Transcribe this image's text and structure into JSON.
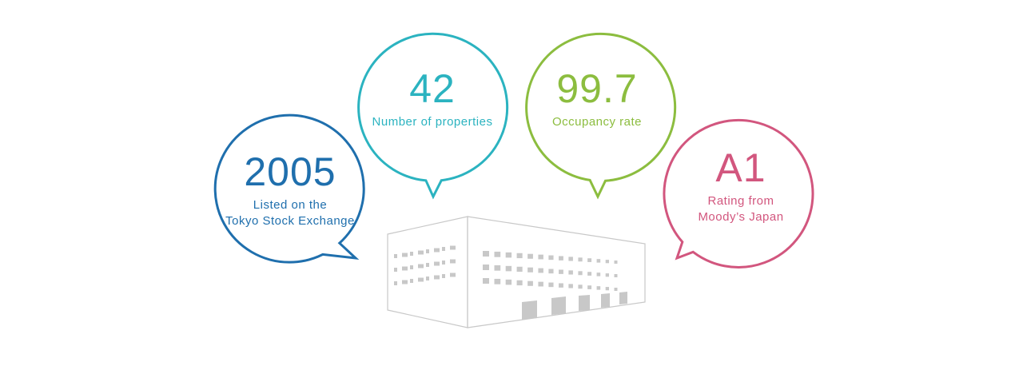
{
  "colors": {
    "blue": "#1f6fad",
    "teal": "#2bb3c0",
    "green": "#8cbd3f",
    "pink": "#d2567e",
    "building": "#c8c8c8"
  },
  "stats": [
    {
      "value": "2005",
      "label_lines": [
        "Listed on the",
        "Tokyo Stock Exchange"
      ]
    },
    {
      "value": "42",
      "label_lines": [
        "Number of properties"
      ]
    },
    {
      "value": "99.7",
      "label_lines": [
        "Occupancy rate"
      ]
    },
    {
      "value": "A1",
      "label_lines": [
        "Rating from",
        "Moody’s Japan"
      ]
    }
  ]
}
